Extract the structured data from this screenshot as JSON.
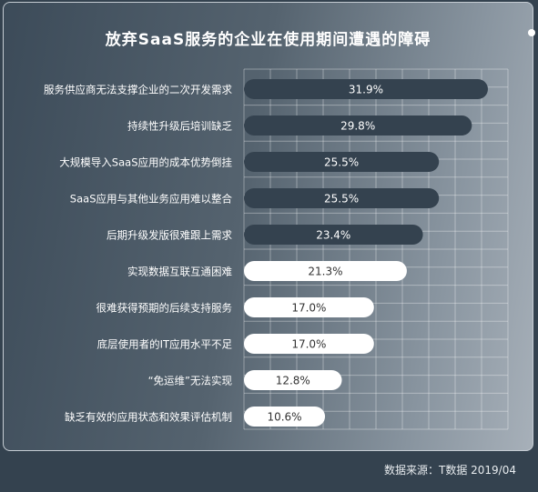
{
  "chart_data": {
    "type": "bar",
    "orientation": "horizontal",
    "title": "放弃SaaS服务的企业在使用期间遭遇的障碍",
    "categories": [
      "服务供应商无法支撑企业的二次开发需求",
      "持续性升级后培训缺乏",
      "大规模导入SaaS应用的成本优势倒挂",
      "SaaS应用与其他业务应用难以整合",
      "后期升级发版很难跟上需求",
      "实现数据互联互通困难",
      "很难获得预期的后续支持服务",
      "底层使用者的IT应用水平不足",
      "“免运维”无法实现",
      "缺乏有效的应用状态和效果评估机制"
    ],
    "values": [
      31.9,
      29.8,
      25.5,
      25.5,
      23.4,
      21.3,
      17.0,
      17.0,
      12.8,
      10.6
    ],
    "value_labels": [
      "31.9%",
      "29.8%",
      "25.5%",
      "25.5%",
      "23.4%",
      "21.3%",
      "17.0%",
      "17.0%",
      "12.8%",
      "10.6%"
    ],
    "highlight_count": 5,
    "colors": {
      "highlight_bar": "#34424f",
      "highlight_text": "#ffffff",
      "normal_bar": "#ffffff",
      "normal_text": "#333333",
      "grid": "rgba(255,255,255,0.35)"
    },
    "grid": true
  },
  "source": "数据来源：T数据 2019/04"
}
